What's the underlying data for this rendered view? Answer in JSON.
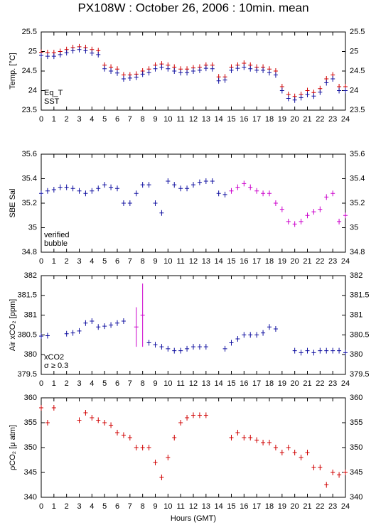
{
  "chart_data": [
    {
      "type": "scatter",
      "title": "PX108W : October 26, 2006 : 10min. mean",
      "ylabel": "Temp. [°C]",
      "xlim": [
        0,
        24
      ],
      "xticks": [
        0,
        1,
        2,
        3,
        4,
        5,
        6,
        7,
        8,
        9,
        10,
        11,
        12,
        13,
        14,
        15,
        16,
        17,
        18,
        19,
        20,
        21,
        22,
        23,
        24
      ],
      "ylim": [
        23.5,
        25.5
      ],
      "yticks": [
        23.5,
        {
          "value": 24,
          "label": "24"
        },
        24.5,
        {
          "value": 25,
          "label": "25"
        },
        25.5
      ],
      "legend": "lower left",
      "x": [
        0,
        0.5,
        1,
        1.5,
        2,
        2.5,
        3,
        3.5,
        4,
        4.5,
        5,
        5.5,
        6,
        6.5,
        7,
        7.5,
        8,
        8.5,
        9,
        9.5,
        10,
        10.5,
        11,
        11.5,
        12,
        12.5,
        13,
        13.5,
        14,
        14.5,
        15,
        15.5,
        16,
        16.5,
        17,
        17.5,
        18,
        18.5,
        19,
        19.5,
        20,
        20.5,
        21,
        21.5,
        22,
        22.5,
        23,
        23.5,
        24
      ],
      "series": [
        {
          "name": "Eq_T",
          "color": "#d00000",
          "values": [
            24.98,
            24.97,
            24.97,
            25.0,
            25.05,
            25.1,
            25.12,
            25.1,
            25.05,
            25.02,
            24.65,
            24.6,
            24.55,
            24.4,
            24.4,
            24.42,
            24.5,
            24.55,
            24.65,
            24.68,
            24.65,
            24.6,
            24.55,
            24.55,
            24.58,
            24.6,
            24.65,
            24.65,
            24.35,
            24.35,
            24.6,
            24.65,
            24.7,
            24.65,
            24.6,
            24.6,
            24.55,
            24.5,
            24.1,
            23.9,
            23.85,
            23.9,
            24.0,
            23.95,
            24.05,
            24.3,
            24.4,
            24.1,
            24.1
          ]
        },
        {
          "name": "SST",
          "color": "#1010a0",
          "values": [
            24.9,
            24.88,
            24.88,
            24.92,
            24.97,
            25.02,
            25.05,
            25.02,
            24.96,
            24.92,
            24.56,
            24.5,
            24.45,
            24.3,
            24.32,
            24.34,
            24.42,
            24.46,
            24.56,
            24.6,
            24.56,
            24.5,
            24.46,
            24.46,
            24.5,
            24.52,
            24.57,
            24.56,
            24.25,
            24.27,
            24.52,
            24.57,
            24.6,
            24.56,
            24.52,
            24.52,
            24.46,
            24.4,
            24.0,
            23.8,
            23.76,
            23.82,
            23.9,
            23.86,
            23.96,
            24.2,
            24.3,
            24.0,
            24.0
          ]
        }
      ]
    },
    {
      "type": "scatter",
      "ylabel": "SBE Sal",
      "xlim": [
        0,
        24
      ],
      "xticks": [
        0,
        1,
        2,
        3,
        4,
        5,
        6,
        7,
        8,
        9,
        10,
        11,
        12,
        13,
        14,
        15,
        16,
        17,
        18,
        19,
        20,
        21,
        22,
        23,
        24
      ],
      "ylim": [
        34.8,
        35.6
      ],
      "yticks": [
        34.8,
        35,
        35.2,
        35.4,
        35.6
      ],
      "legend": "lower left",
      "x": [
        0,
        0.5,
        1,
        1.5,
        2,
        2.5,
        3,
        3.5,
        4,
        4.5,
        5,
        5.5,
        6,
        6.5,
        7,
        7.5,
        8,
        8.5,
        9,
        9.5,
        10,
        10.5,
        11,
        11.5,
        12,
        12.5,
        13,
        13.5,
        14,
        14.5,
        15,
        15.5,
        16,
        16.5,
        17,
        17.5,
        18,
        18.5,
        19,
        19.5,
        20,
        20.5,
        21,
        21.5,
        22,
        22.5,
        23,
        23.5,
        24
      ],
      "series": [
        {
          "name": "verified",
          "color": "#1010a0",
          "values": [
            35.28,
            35.3,
            35.31,
            35.33,
            35.33,
            35.32,
            35.3,
            35.28,
            35.3,
            35.32,
            35.35,
            35.33,
            35.32,
            35.2,
            35.2,
            35.28,
            35.35,
            35.35,
            35.2,
            35.12,
            35.38,
            35.35,
            35.32,
            35.32,
            35.35,
            35.37,
            35.38,
            35.38,
            35.28,
            35.27,
            null,
            null,
            null,
            null,
            null,
            null,
            null,
            null,
            null,
            null,
            null,
            null,
            null,
            null,
            null,
            null,
            null,
            null,
            null
          ]
        },
        {
          "name": "bubble",
          "color": "#cc00cc",
          "values": [
            null,
            null,
            null,
            null,
            null,
            null,
            null,
            null,
            null,
            null,
            null,
            null,
            null,
            null,
            null,
            null,
            null,
            null,
            null,
            null,
            null,
            null,
            null,
            null,
            null,
            null,
            null,
            null,
            null,
            null,
            35.3,
            35.33,
            35.36,
            35.33,
            35.3,
            35.28,
            35.28,
            35.2,
            35.15,
            35.05,
            35.03,
            35.05,
            35.1,
            35.13,
            35.15,
            35.25,
            35.28,
            35.05,
            35.1
          ]
        }
      ]
    },
    {
      "type": "scatter",
      "ylabel": "Air xCO₂ [ppm]",
      "xlim": [
        0,
        24
      ],
      "xticks": [
        0,
        1,
        2,
        3,
        4,
        5,
        6,
        7,
        8,
        9,
        10,
        11,
        12,
        13,
        14,
        15,
        16,
        17,
        18,
        19,
        20,
        21,
        22,
        23,
        24
      ],
      "ylim": [
        379.5,
        382
      ],
      "yticks": [
        379.5,
        380,
        380.5,
        381,
        381.5,
        382
      ],
      "legend": "lower left",
      "x": [
        0,
        0.5,
        1,
        1.5,
        2,
        2.5,
        3,
        3.5,
        4,
        4.5,
        5,
        5.5,
        6,
        6.5,
        7,
        7.5,
        8,
        8.5,
        9,
        9.5,
        10,
        10.5,
        11,
        11.5,
        12,
        12.5,
        13,
        13.5,
        14,
        14.5,
        15,
        15.5,
        16,
        16.5,
        17,
        17.5,
        18,
        18.5,
        19,
        19.5,
        20,
        20.5,
        21,
        21.5,
        22,
        22.5,
        23,
        23.5,
        24
      ],
      "series": [
        {
          "name": "xCO2",
          "color": "#1010a0",
          "values": [
            380.47,
            380.48,
            null,
            null,
            380.53,
            380.55,
            380.6,
            380.8,
            380.85,
            380.7,
            380.72,
            380.75,
            380.8,
            380.85,
            null,
            null,
            null,
            380.3,
            380.25,
            380.2,
            380.15,
            380.1,
            380.1,
            380.15,
            380.2,
            380.2,
            380.2,
            null,
            null,
            380.15,
            380.3,
            380.4,
            380.5,
            380.5,
            380.5,
            380.55,
            380.7,
            380.65,
            null,
            null,
            380.1,
            380.05,
            380.1,
            380.05,
            380.1,
            380.1,
            380.1,
            380.1,
            380.05
          ]
        },
        {
          "name": "σ ≥ 0.3",
          "color": "#cc00cc",
          "values": [
            null,
            null,
            null,
            null,
            null,
            null,
            null,
            null,
            null,
            null,
            null,
            null,
            null,
            null,
            null,
            380.7,
            381.0,
            null,
            null,
            null,
            null,
            null,
            null,
            null,
            null,
            null,
            null,
            null,
            null,
            null,
            null,
            null,
            null,
            null,
            null,
            null,
            null,
            null,
            null,
            null,
            null,
            null,
            null,
            null,
            null,
            null,
            null,
            null,
            null
          ],
          "errors": [
            null,
            null,
            null,
            null,
            null,
            null,
            null,
            null,
            null,
            null,
            null,
            null,
            null,
            null,
            null,
            0.5,
            0.8,
            null,
            null,
            null,
            null,
            null,
            null,
            null,
            null,
            null,
            null,
            null,
            null,
            null,
            null,
            null,
            null,
            null,
            null,
            null,
            null,
            null,
            null,
            null,
            null,
            null,
            null,
            null,
            null,
            null,
            null,
            null,
            null
          ]
        }
      ]
    },
    {
      "type": "scatter",
      "ylabel": "ρCO₂ [μ atm]",
      "xlabel": "Hours (GMT)",
      "xlim": [
        0,
        24
      ],
      "xticks": [
        0,
        1,
        2,
        3,
        4,
        5,
        6,
        7,
        8,
        9,
        10,
        11,
        12,
        13,
        14,
        15,
        16,
        17,
        18,
        19,
        20,
        21,
        22,
        23,
        24
      ],
      "ylim": [
        340,
        360
      ],
      "yticks": [
        340,
        345,
        350,
        355,
        360
      ],
      "x": [
        0,
        0.5,
        1,
        1.5,
        2,
        2.5,
        3,
        3.5,
        4,
        4.5,
        5,
        5.5,
        6,
        6.5,
        7,
        7.5,
        8,
        8.5,
        9,
        9.5,
        10,
        10.5,
        11,
        11.5,
        12,
        12.5,
        13,
        13.5,
        14,
        14.5,
        15,
        15.5,
        16,
        16.5,
        17,
        17.5,
        18,
        18.5,
        19,
        19.5,
        20,
        20.5,
        21,
        21.5,
        22,
        22.5,
        23,
        23.5,
        24
      ],
      "series": [
        {
          "name": "pCO2",
          "color": "#d00000",
          "values": [
            358,
            355,
            358,
            null,
            null,
            null,
            355.5,
            357,
            356,
            355.5,
            355,
            354.5,
            353,
            352.5,
            352,
            350,
            350,
            350,
            347,
            344,
            348,
            352,
            355,
            356,
            356.5,
            356.5,
            356.5,
            null,
            null,
            null,
            352,
            353,
            352,
            352,
            351.5,
            351,
            351,
            350,
            349,
            350,
            349,
            348,
            349,
            346,
            346,
            342.5,
            345,
            344.5,
            345
          ]
        }
      ]
    }
  ]
}
